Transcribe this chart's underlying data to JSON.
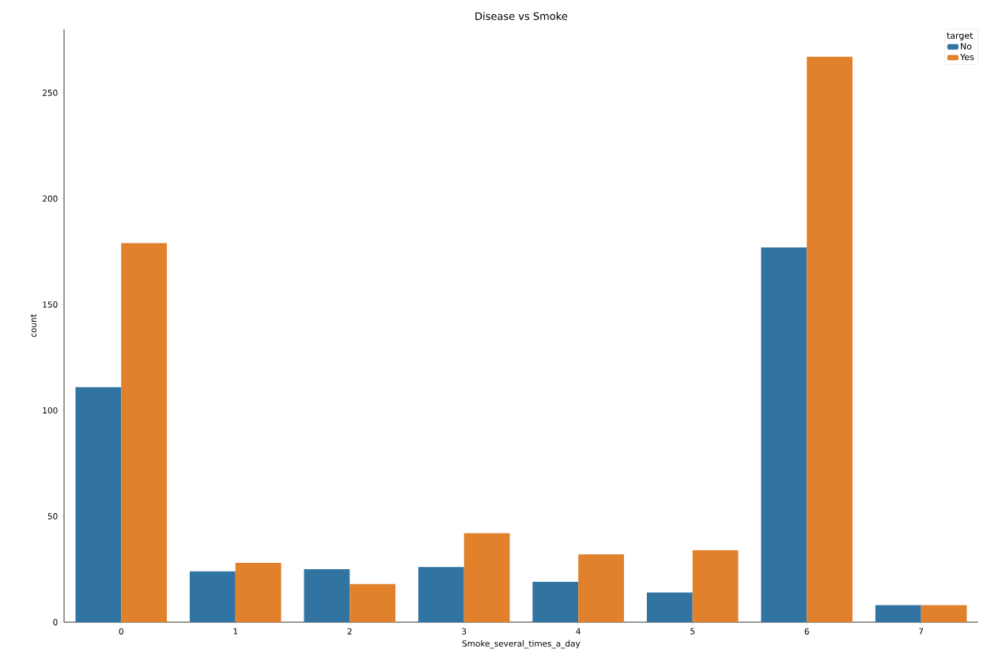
{
  "chart_data": {
    "type": "bar",
    "title": "Disease vs Smoke",
    "xlabel": "Smoke_several_times_a_day",
    "ylabel": "count",
    "legend_title": "target",
    "categories": [
      "0",
      "1",
      "2",
      "3",
      "4",
      "5",
      "6",
      "7"
    ],
    "series": [
      {
        "name": "No",
        "color": "#3274a1",
        "values": [
          111,
          24,
          25,
          26,
          19,
          14,
          177,
          8
        ]
      },
      {
        "name": "Yes",
        "color": "#e1812c",
        "values": [
          179,
          28,
          18,
          42,
          32,
          34,
          267,
          8
        ]
      }
    ],
    "ylim": [
      0,
      280
    ],
    "yticks": [
      0,
      50,
      100,
      150,
      200,
      250
    ],
    "grid": false,
    "legend": "top right"
  }
}
